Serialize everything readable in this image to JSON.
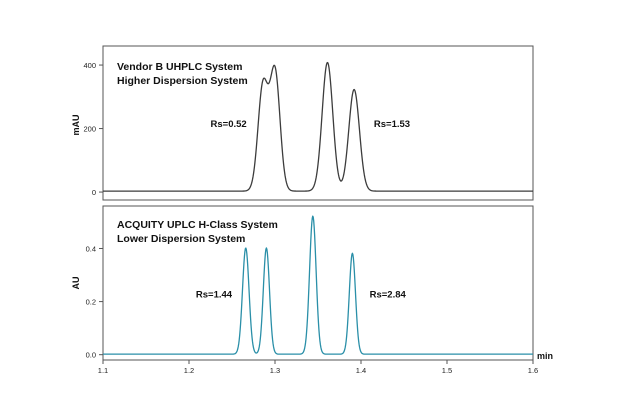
{
  "chart_data": [
    {
      "type": "line",
      "annotations": [
        "Vendor B UHPLC System",
        "Higher Dispersion System"
      ],
      "ylabel": "mAU",
      "xlim": [
        1.1,
        1.6
      ],
      "ylim": [
        -25,
        460
      ],
      "yticks": [
        0,
        200,
        400
      ],
      "grid": false,
      "color": "#3c3c3c",
      "peaks": [
        {
          "center": 1.286,
          "height": 330,
          "width": 0.0058
        },
        {
          "center": 1.3,
          "height": 375,
          "width": 0.0058
        },
        {
          "center": 1.361,
          "height": 405,
          "width": 0.0062
        },
        {
          "center": 1.392,
          "height": 320,
          "width": 0.0062
        }
      ],
      "series": [
        {
          "x": [
            1.1,
            1.24,
            1.26,
            1.27,
            1.28,
            1.286,
            1.293,
            1.3,
            1.31,
            1.32,
            1.33,
            1.34,
            1.35,
            1.361,
            1.37,
            1.376,
            1.385,
            1.392,
            1.4,
            1.41,
            1.43,
            1.6
          ],
          "y": [
            3,
            3,
            8,
            60,
            290,
            330,
            240,
            375,
            170,
            20,
            3,
            15,
            180,
            405,
            230,
            90,
            200,
            320,
            110,
            10,
            3,
            3
          ]
        }
      ],
      "resolution_labels": [
        {
          "text": "Rs=0.52",
          "x": 1.225,
          "y": 205
        },
        {
          "text": "Rs=1.53",
          "x": 1.415,
          "y": 205
        }
      ]
    },
    {
      "type": "line",
      "annotations": [
        "ACQUITY UPLC H-Class System",
        "Lower Dispersion System"
      ],
      "ylabel": "AU",
      "xlabel": "min",
      "xlim": [
        1.1,
        1.6
      ],
      "ylim": [
        -0.02,
        0.56
      ],
      "yticks": [
        0.0,
        0.2,
        0.4
      ],
      "ytick_labels": [
        "0.0",
        "0.2",
        "0.4"
      ],
      "xticks": [
        1.1,
        1.2,
        1.3,
        1.4,
        1.5,
        1.6
      ],
      "grid": false,
      "color": "#2a8fa8",
      "peaks": [
        {
          "center": 1.266,
          "height": 0.4,
          "width": 0.0038
        },
        {
          "center": 1.29,
          "height": 0.4,
          "width": 0.0036
        },
        {
          "center": 1.344,
          "height": 0.52,
          "width": 0.0038
        },
        {
          "center": 1.39,
          "height": 0.38,
          "width": 0.0036
        }
      ],
      "series": [
        {
          "x": [
            1.1,
            1.25,
            1.26,
            1.266,
            1.275,
            1.283,
            1.29,
            1.297,
            1.33,
            1.338,
            1.344,
            1.35,
            1.38,
            1.385,
            1.39,
            1.396,
            1.41,
            1.6
          ],
          "y": [
            0.002,
            0.002,
            0.12,
            0.4,
            0.08,
            0.1,
            0.4,
            0.05,
            0.002,
            0.15,
            0.52,
            0.1,
            0.002,
            0.15,
            0.38,
            0.06,
            0.002,
            0.002
          ]
        }
      ],
      "resolution_labels": [
        {
          "text": "Rs=1.44",
          "x": 1.208,
          "y": 0.215
        },
        {
          "text": "Rs=2.84",
          "x": 1.41,
          "y": 0.215
        }
      ]
    }
  ]
}
